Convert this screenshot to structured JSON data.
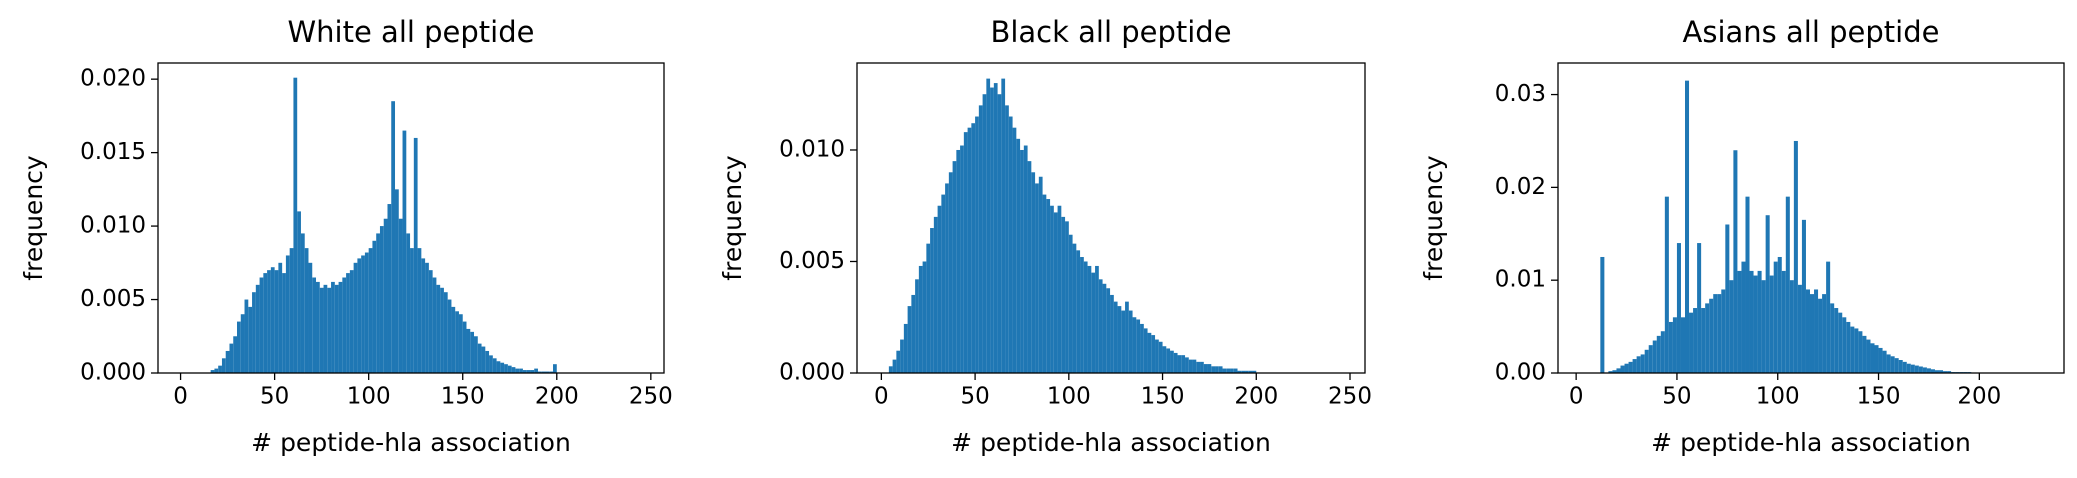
{
  "chart_data": [
    {
      "type": "histogram",
      "title": "White  all peptide",
      "xlabel": "# peptide-hla association",
      "ylabel": "frequency",
      "color": "#1f77b4",
      "xlim": [
        -12,
        257
      ],
      "ylim": [
        0,
        0.0211
      ],
      "xticks": [
        0,
        50,
        100,
        150,
        200,
        250
      ],
      "yticks": [
        {
          "value": 0,
          "label": "0.000"
        },
        {
          "value": 0.005,
          "label": "0.005"
        },
        {
          "value": 0.01,
          "label": "0.010"
        },
        {
          "value": 0.015,
          "label": "0.015"
        },
        {
          "value": 0.02,
          "label": "0.020"
        }
      ],
      "bins": [
        16,
        18,
        20,
        22,
        24,
        26,
        28,
        30,
        32,
        34,
        36,
        38,
        40,
        42,
        44,
        46,
        48,
        50,
        52,
        54,
        56,
        58,
        60,
        62,
        64,
        66,
        68,
        70,
        72,
        74,
        76,
        78,
        80,
        82,
        84,
        86,
        88,
        90,
        92,
        94,
        96,
        98,
        100,
        102,
        104,
        106,
        108,
        110,
        112,
        114,
        116,
        118,
        120,
        122,
        124,
        126,
        128,
        130,
        132,
        134,
        136,
        138,
        140,
        142,
        144,
        146,
        148,
        150,
        152,
        154,
        156,
        158,
        160,
        162,
        164,
        166,
        168,
        170,
        172,
        174,
        176,
        178,
        180,
        182,
        184,
        186,
        188,
        190,
        192,
        194,
        196,
        198,
        200
      ],
      "counts": [
        0.0002,
        0.0003,
        0.0005,
        0.001,
        0.0015,
        0.002,
        0.0025,
        0.0035,
        0.004,
        0.005,
        0.0045,
        0.0055,
        0.006,
        0.0065,
        0.0068,
        0.007,
        0.0072,
        0.007,
        0.0075,
        0.0068,
        0.008,
        0.0085,
        0.0201,
        0.011,
        0.0095,
        0.0085,
        0.0075,
        0.0065,
        0.0062,
        0.0058,
        0.006,
        0.0058,
        0.0062,
        0.006,
        0.0062,
        0.0065,
        0.0068,
        0.007,
        0.0075,
        0.0078,
        0.008,
        0.0082,
        0.0085,
        0.009,
        0.0095,
        0.01,
        0.0105,
        0.0115,
        0.0185,
        0.0125,
        0.0105,
        0.0165,
        0.0095,
        0.0085,
        0.016,
        0.0085,
        0.0078,
        0.0075,
        0.007,
        0.0065,
        0.006,
        0.0058,
        0.0055,
        0.005,
        0.0045,
        0.0042,
        0.004,
        0.0035,
        0.003,
        0.0028,
        0.0025,
        0.002,
        0.0018,
        0.0015,
        0.0012,
        0.001,
        0.0008,
        0.0007,
        0.0006,
        0.0005,
        0.0004,
        0.0003,
        0.0003,
        0.0002,
        0.0002,
        0.0002,
        0.0003,
        0.0001,
        0.0001,
        0.0001,
        0.0001,
        0.0006
      ]
    },
    {
      "type": "histogram",
      "title": "Black  all peptide",
      "xlabel": "# peptide-hla association",
      "ylabel": "frequency",
      "color": "#1f77b4",
      "xlim": [
        -13,
        258
      ],
      "ylim": [
        0,
        0.0139
      ],
      "xticks": [
        0,
        50,
        100,
        150,
        200,
        250
      ],
      "yticks": [
        {
          "value": 0,
          "label": "0.000"
        },
        {
          "value": 0.005,
          "label": "0.005"
        },
        {
          "value": 0.01,
          "label": "0.010"
        }
      ],
      "bins": [
        4,
        6,
        8,
        10,
        12,
        14,
        16,
        18,
        20,
        22,
        24,
        26,
        28,
        30,
        32,
        34,
        36,
        38,
        40,
        42,
        44,
        46,
        48,
        50,
        52,
        54,
        56,
        58,
        60,
        62,
        64,
        66,
        68,
        70,
        72,
        74,
        76,
        78,
        80,
        82,
        84,
        86,
        88,
        90,
        92,
        94,
        96,
        98,
        100,
        102,
        104,
        106,
        108,
        110,
        112,
        114,
        116,
        118,
        120,
        122,
        124,
        126,
        128,
        130,
        132,
        134,
        136,
        138,
        140,
        142,
        144,
        146,
        148,
        150,
        152,
        154,
        156,
        158,
        160,
        162,
        164,
        166,
        168,
        170,
        172,
        174,
        176,
        178,
        180,
        182,
        184,
        186,
        188,
        190,
        192,
        194,
        196,
        198,
        200
      ],
      "counts": [
        0.0003,
        0.0006,
        0.001,
        0.0015,
        0.0022,
        0.003,
        0.0035,
        0.0042,
        0.0048,
        0.005,
        0.0058,
        0.0065,
        0.007,
        0.0075,
        0.008,
        0.0085,
        0.009,
        0.0095,
        0.01,
        0.0102,
        0.0108,
        0.011,
        0.0112,
        0.0115,
        0.012,
        0.0125,
        0.0132,
        0.0128,
        0.013,
        0.0125,
        0.0132,
        0.012,
        0.0115,
        0.011,
        0.0105,
        0.01,
        0.0102,
        0.0095,
        0.009,
        0.0085,
        0.0088,
        0.008,
        0.0078,
        0.0075,
        0.0072,
        0.0075,
        0.007,
        0.0068,
        0.0062,
        0.0058,
        0.0055,
        0.0052,
        0.005,
        0.0048,
        0.0045,
        0.0048,
        0.0042,
        0.004,
        0.0038,
        0.0035,
        0.0032,
        0.003,
        0.0028,
        0.0032,
        0.0028,
        0.0025,
        0.0024,
        0.0022,
        0.002,
        0.0018,
        0.0017,
        0.0015,
        0.0014,
        0.0012,
        0.0011,
        0.001,
        0.0009,
        0.0008,
        0.0008,
        0.0007,
        0.0006,
        0.0006,
        0.0005,
        0.0005,
        0.0004,
        0.0004,
        0.0003,
        0.0003,
        0.0003,
        0.0002,
        0.0002,
        0.0002,
        0.0002,
        0.0001,
        0.0001,
        0.0001,
        0.0001,
        0.0001
      ]
    },
    {
      "type": "histogram",
      "title": "Asians  all peptide",
      "xlabel": "# peptide-hla association",
      "ylabel": "frequency",
      "color": "#1f77b4",
      "xlim": [
        -9,
        242
      ],
      "ylim": [
        0,
        0.0334
      ],
      "xticks": [
        0,
        50,
        100,
        150,
        200
      ],
      "yticks": [
        {
          "value": 0,
          "label": "0.00"
        },
        {
          "value": 0.01,
          "label": "0.01"
        },
        {
          "value": 0.02,
          "label": "0.02"
        },
        {
          "value": 0.03,
          "label": "0.03"
        }
      ],
      "bins": [
        10,
        12,
        14,
        16,
        18,
        20,
        22,
        24,
        26,
        28,
        30,
        32,
        34,
        36,
        38,
        40,
        42,
        44,
        46,
        48,
        50,
        52,
        54,
        56,
        58,
        60,
        62,
        64,
        66,
        68,
        70,
        72,
        74,
        76,
        78,
        80,
        82,
        84,
        86,
        88,
        90,
        92,
        94,
        96,
        98,
        100,
        102,
        104,
        106,
        108,
        110,
        112,
        114,
        116,
        118,
        120,
        122,
        124,
        126,
        128,
        130,
        132,
        134,
        136,
        138,
        140,
        142,
        144,
        146,
        148,
        150,
        152,
        154,
        156,
        158,
        160,
        162,
        164,
        166,
        168,
        170,
        172,
        174,
        176,
        178,
        180,
        182,
        184,
        186,
        188,
        190,
        192,
        194,
        196
      ],
      "counts": [
        0,
        0.0125,
        0,
        0.0002,
        0.0003,
        0.0005,
        0.0008,
        0.001,
        0.0012,
        0.0015,
        0.0018,
        0.002,
        0.0025,
        0.003,
        0.0035,
        0.004,
        0.0045,
        0.019,
        0.0055,
        0.006,
        0.014,
        0.006,
        0.0315,
        0.0065,
        0.007,
        0.014,
        0.007,
        0.0075,
        0.008,
        0.0085,
        0.0085,
        0.009,
        0.016,
        0.01,
        0.024,
        0.011,
        0.012,
        0.019,
        0.011,
        0.0105,
        0.011,
        0.01,
        0.017,
        0.0105,
        0.012,
        0.0125,
        0.011,
        0.019,
        0.01,
        0.025,
        0.0095,
        0.0165,
        0.009,
        0.0085,
        0.009,
        0.008,
        0.0085,
        0.012,
        0.0075,
        0.007,
        0.0065,
        0.006,
        0.0055,
        0.005,
        0.0048,
        0.0045,
        0.004,
        0.0036,
        0.0032,
        0.003,
        0.0027,
        0.0024,
        0.002,
        0.0018,
        0.0016,
        0.0014,
        0.0012,
        0.001,
        0.0009,
        0.0008,
        0.0007,
        0.0006,
        0.0005,
        0.0004,
        0.0003,
        0.0003,
        0.0002,
        0.0002,
        0.0001,
        0.0001,
        0.0001,
        0.0001,
        0.0001
      ]
    }
  ]
}
